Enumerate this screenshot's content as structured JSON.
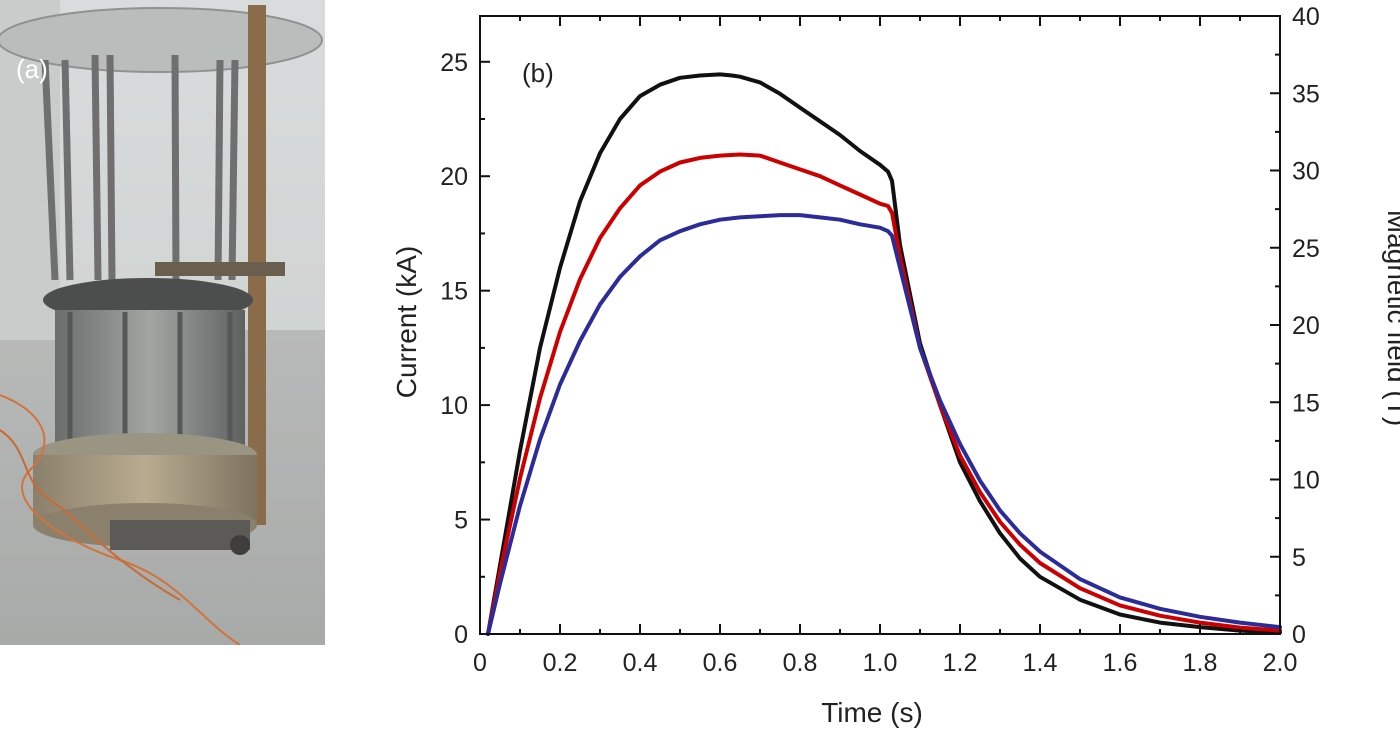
{
  "panel_a": {
    "label": "(a)",
    "description_icon": "magnet-coil-photo"
  },
  "chart_data": {
    "type": "line",
    "panel_label": "(b)",
    "xlabel": "Time (s)",
    "ylabel_left": "Current (kA)",
    "ylabel_right": "Magnetic field (T)",
    "xlim": [
      0,
      2.0
    ],
    "ylim_left": [
      0,
      27
    ],
    "ylim_right": [
      0,
      40
    ],
    "x_ticks": [
      "0",
      "0.2",
      "0.4",
      "0.6",
      "0.8",
      "1.0",
      "1.2",
      "1.4",
      "1.6",
      "1.8",
      "2.0"
    ],
    "x_tick_values": [
      0,
      0.2,
      0.4,
      0.6,
      0.8,
      1.0,
      1.2,
      1.4,
      1.6,
      1.8,
      2.0
    ],
    "y_left_ticks": [
      "0",
      "5",
      "10",
      "15",
      "20",
      "25"
    ],
    "y_left_tick_values": [
      0,
      5,
      10,
      15,
      20,
      25
    ],
    "y_right_ticks": [
      "0",
      "5",
      "10",
      "15",
      "20",
      "25",
      "30",
      "35",
      "40"
    ],
    "y_right_tick_values": [
      0,
      5,
      10,
      15,
      20,
      25,
      30,
      35,
      40
    ],
    "grid": false,
    "series": [
      {
        "name": "black",
        "color": "#111111",
        "x": [
          0.02,
          0.05,
          0.1,
          0.15,
          0.2,
          0.25,
          0.3,
          0.35,
          0.4,
          0.45,
          0.5,
          0.55,
          0.6,
          0.63,
          0.65,
          0.7,
          0.75,
          0.8,
          0.85,
          0.9,
          0.95,
          1.0,
          1.02,
          1.03,
          1.05,
          1.1,
          1.15,
          1.2,
          1.25,
          1.3,
          1.35,
          1.4,
          1.5,
          1.6,
          1.7,
          1.8,
          1.9,
          2.0
        ],
        "y": [
          0.0,
          3.0,
          8.0,
          12.5,
          16.0,
          18.9,
          21.0,
          22.5,
          23.5,
          24.0,
          24.3,
          24.4,
          24.45,
          24.4,
          24.35,
          24.1,
          23.6,
          23.0,
          22.4,
          21.8,
          21.1,
          20.5,
          20.2,
          19.8,
          17.0,
          12.7,
          10.0,
          7.5,
          5.8,
          4.4,
          3.3,
          2.5,
          1.5,
          0.85,
          0.5,
          0.3,
          0.15,
          0.07
        ]
      },
      {
        "name": "red",
        "color": "#cc0000",
        "x": [
          0.02,
          0.05,
          0.1,
          0.15,
          0.2,
          0.25,
          0.3,
          0.35,
          0.4,
          0.45,
          0.5,
          0.55,
          0.6,
          0.65,
          0.7,
          0.75,
          0.8,
          0.85,
          0.9,
          0.95,
          1.0,
          1.02,
          1.03,
          1.05,
          1.1,
          1.15,
          1.2,
          1.25,
          1.3,
          1.35,
          1.4,
          1.5,
          1.6,
          1.7,
          1.8,
          1.9,
          2.0
        ],
        "y": [
          0.0,
          2.7,
          6.8,
          10.3,
          13.2,
          15.5,
          17.3,
          18.6,
          19.6,
          20.2,
          20.6,
          20.8,
          20.9,
          20.95,
          20.9,
          20.6,
          20.3,
          20.0,
          19.6,
          19.2,
          18.8,
          18.7,
          18.4,
          16.5,
          12.5,
          10.0,
          7.8,
          6.2,
          4.9,
          3.9,
          3.1,
          2.0,
          1.25,
          0.8,
          0.5,
          0.28,
          0.15
        ]
      },
      {
        "name": "blue",
        "color": "#2b2b99",
        "x": [
          0.02,
          0.05,
          0.1,
          0.15,
          0.2,
          0.25,
          0.3,
          0.35,
          0.4,
          0.45,
          0.5,
          0.55,
          0.6,
          0.65,
          0.7,
          0.75,
          0.8,
          0.85,
          0.9,
          0.95,
          1.0,
          1.02,
          1.03,
          1.05,
          1.1,
          1.15,
          1.2,
          1.25,
          1.3,
          1.35,
          1.4,
          1.5,
          1.6,
          1.7,
          1.8,
          1.9,
          2.0
        ],
        "y": [
          0.0,
          2.2,
          5.6,
          8.5,
          10.9,
          12.8,
          14.4,
          15.6,
          16.5,
          17.2,
          17.6,
          17.9,
          18.1,
          18.2,
          18.25,
          18.3,
          18.3,
          18.2,
          18.1,
          17.9,
          17.75,
          17.6,
          17.4,
          16.0,
          12.5,
          10.2,
          8.3,
          6.7,
          5.4,
          4.4,
          3.6,
          2.4,
          1.6,
          1.1,
          0.75,
          0.5,
          0.3
        ]
      }
    ]
  }
}
